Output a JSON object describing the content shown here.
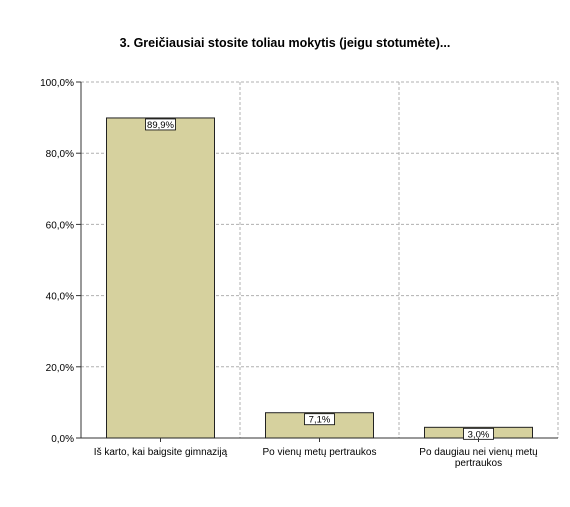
{
  "chart_data": {
    "type": "bar",
    "title": "3. Greičiausiai stosite toliau mokytis (jeigu stotumėte)...",
    "xlabel": "",
    "ylabel": "",
    "categories": [
      [
        "Iš karto, kai baigsite gimnaziją"
      ],
      [
        "Po vienų metų pertraukos"
      ],
      [
        "Po daugiau nei vienų metų",
        "pertraukos"
      ]
    ],
    "values": [
      89.9,
      7.1,
      3.0
    ],
    "value_labels": [
      "89,9%",
      "7,1%",
      "3,0%"
    ],
    "ylim": [
      0,
      100
    ],
    "yticks": [
      0,
      20,
      40,
      60,
      80,
      100
    ],
    "ytick_labels": [
      "0,0%",
      "20,0%",
      "40,0%",
      "60,0%",
      "80,0%",
      "100,0%"
    ],
    "grid": true,
    "legend": "none",
    "colors": {
      "bar_fill": "#d6d19e",
      "bar_stroke": "#222222",
      "grid": "#b0b0b0",
      "axis": "#333333",
      "label_box": "#ffffff"
    }
  }
}
